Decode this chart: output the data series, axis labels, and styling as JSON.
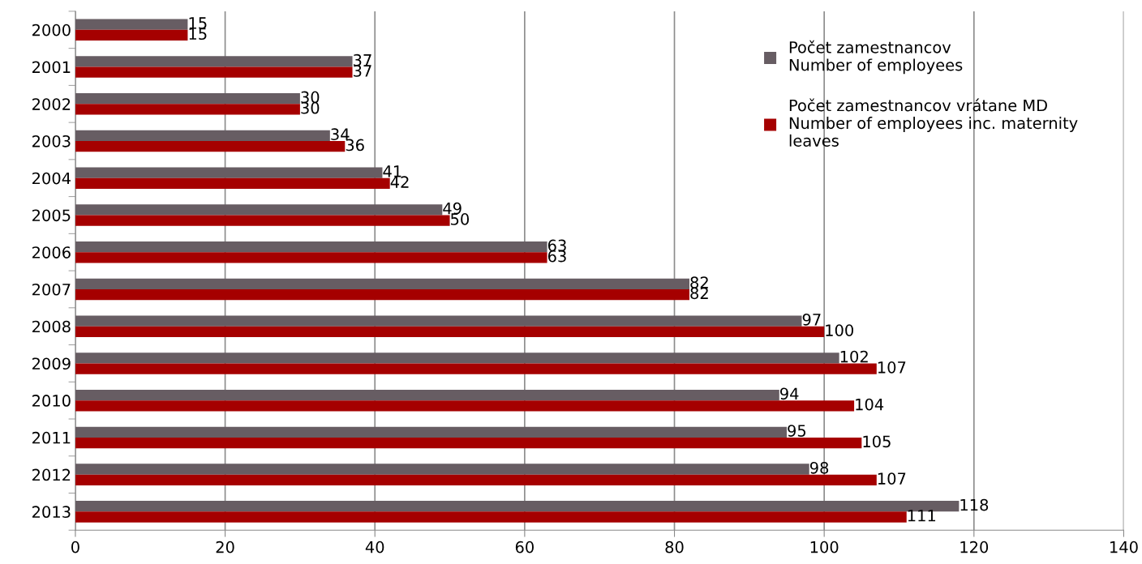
{
  "chart_data": {
    "type": "bar",
    "orientation": "horizontal",
    "categories": [
      "2000",
      "2001",
      "2002",
      "2003",
      "2004",
      "2005",
      "2006",
      "2007",
      "2008",
      "2009",
      "2010",
      "2011",
      "2012",
      "2013"
    ],
    "series": [
      {
        "name": "Počet zamestnancov\nNumber of employees",
        "color": "#675d63",
        "values": [
          15,
          37,
          30,
          34,
          41,
          49,
          63,
          82,
          97,
          102,
          94,
          95,
          98,
          118
        ]
      },
      {
        "name": "Počet zamestnancov vrátane MD\nNumber of employees inc. maternity\nleaves",
        "color": "#a50000",
        "values": [
          15,
          37,
          30,
          36,
          42,
          50,
          63,
          82,
          100,
          107,
          104,
          105,
          107,
          111
        ]
      }
    ],
    "xlim": [
      0,
      140
    ],
    "xticks": [
      0,
      20,
      40,
      60,
      80,
      100,
      120,
      140
    ],
    "grid": "x",
    "legend": "top right",
    "data_labels": true
  }
}
